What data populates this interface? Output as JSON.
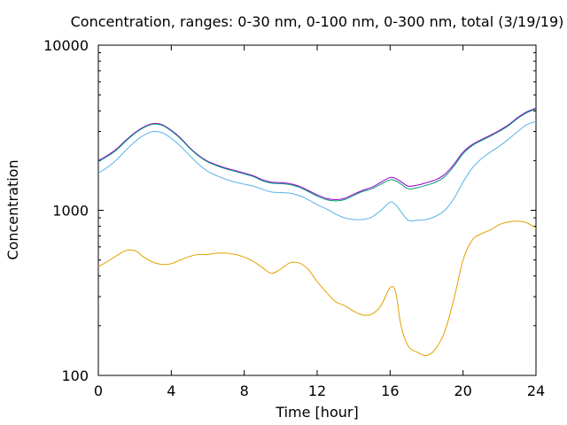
{
  "chart_data": {
    "type": "line",
    "title": "Concentration, ranges: 0-30 nm, 0-100 nm, 0-300 nm, total (3/19/19)",
    "xlabel": "Time [hour]",
    "ylabel": "Concentration",
    "xlim": [
      0,
      24
    ],
    "ylim": [
      100,
      10000
    ],
    "yscale": "log",
    "grid": false,
    "legend": "none",
    "xticks": [
      0,
      4,
      8,
      12,
      16,
      20,
      24
    ],
    "xtick_labels": [
      "0",
      "4",
      "8",
      "12",
      "16",
      "20",
      "24"
    ],
    "yticks": [
      100,
      1000,
      10000
    ],
    "ytick_labels": [
      "100",
      "1000",
      "10000"
    ],
    "x": [
      0,
      0.5,
      1,
      1.5,
      2,
      2.5,
      3,
      3.5,
      4,
      4.5,
      5,
      5.5,
      6,
      6.5,
      7,
      7.5,
      8,
      8.5,
      9,
      9.5,
      10,
      10.5,
      11,
      11.5,
      12,
      12.5,
      13,
      13.5,
      14,
      14.5,
      15,
      15.5,
      16,
      16.3,
      16.6,
      17,
      17.5,
      18,
      18.5,
      19,
      19.5,
      20,
      20.5,
      21,
      21.5,
      22,
      22.5,
      23,
      23.5,
      24
    ],
    "series": [
      {
        "color": "#9400d3",
        "values": [
          2000,
          2150,
          2350,
          2650,
          2950,
          3200,
          3350,
          3300,
          3050,
          2750,
          2400,
          2150,
          1980,
          1880,
          1800,
          1740,
          1680,
          1620,
          1530,
          1480,
          1470,
          1450,
          1400,
          1320,
          1240,
          1180,
          1160,
          1180,
          1250,
          1320,
          1380,
          1480,
          1580,
          1560,
          1490,
          1400,
          1420,
          1470,
          1530,
          1650,
          1900,
          2250,
          2500,
          2680,
          2850,
          3050,
          3300,
          3650,
          3950,
          4150
        ]
      },
      {
        "color": "#009e73",
        "values": [
          1970,
          2120,
          2320,
          2620,
          2920,
          3170,
          3320,
          3270,
          3020,
          2720,
          2380,
          2130,
          1960,
          1860,
          1780,
          1720,
          1660,
          1600,
          1510,
          1460,
          1450,
          1430,
          1380,
          1300,
          1220,
          1160,
          1140,
          1160,
          1230,
          1300,
          1350,
          1440,
          1530,
          1510,
          1440,
          1350,
          1370,
          1420,
          1480,
          1600,
          1850,
          2200,
          2460,
          2640,
          2810,
          3010,
          3260,
          3600,
          3900,
          4100
        ]
      },
      {
        "color": "#56b4e9",
        "values": [
          1680,
          1820,
          2020,
          2300,
          2600,
          2850,
          3000,
          2950,
          2730,
          2450,
          2150,
          1900,
          1720,
          1620,
          1540,
          1480,
          1440,
          1400,
          1340,
          1290,
          1280,
          1270,
          1230,
          1160,
          1080,
          1020,
          950,
          900,
          880,
          880,
          910,
          1000,
          1120,
          1080,
          980,
          870,
          870,
          880,
          920,
          1000,
          1180,
          1480,
          1800,
          2050,
          2250,
          2450,
          2700,
          3000,
          3300,
          3450
        ]
      },
      {
        "color": "#e69f00",
        "values": [
          455,
          490,
          530,
          570,
          570,
          520,
          485,
          470,
          475,
          500,
          525,
          540,
          540,
          550,
          550,
          540,
          520,
          490,
          450,
          415,
          440,
          480,
          480,
          440,
          370,
          320,
          280,
          265,
          245,
          232,
          235,
          265,
          340,
          320,
          200,
          150,
          138,
          132,
          145,
          185,
          290,
          500,
          660,
          720,
          760,
          820,
          850,
          860,
          840,
          780
        ]
      }
    ]
  }
}
